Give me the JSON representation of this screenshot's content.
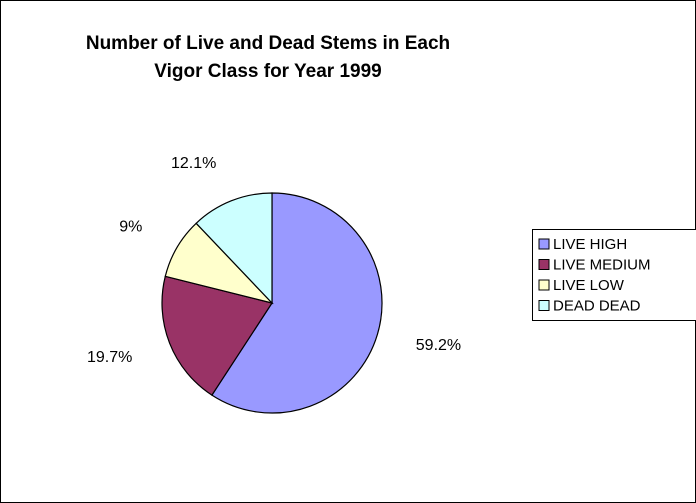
{
  "chart_data": {
    "type": "pie",
    "title": [
      "Number of Live and Dead Stems in Each",
      "Vigor Class for Year 1999"
    ],
    "categories": [
      "LIVE HIGH",
      "LIVE MEDIUM",
      "LIVE LOW",
      "DEAD DEAD"
    ],
    "values": [
      59.2,
      19.7,
      9,
      12.1
    ],
    "value_labels": [
      "59.2%",
      "19.7%",
      "9%",
      "12.1%"
    ],
    "colors": [
      "#9999ff",
      "#993366",
      "#ffffcc",
      "#ccffff"
    ],
    "legend": "right"
  }
}
